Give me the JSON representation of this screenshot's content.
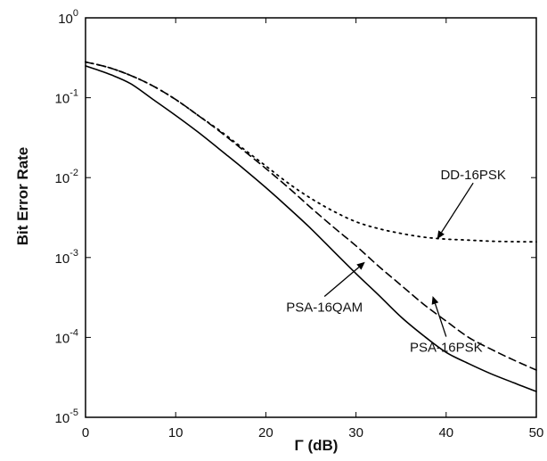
{
  "chart_data": {
    "type": "line",
    "title": "",
    "xlabel": "Γ (dB)",
    "ylabel": "Bit Error Rate",
    "xlim": [
      0,
      50
    ],
    "ylim": [
      1e-05,
      1
    ],
    "yscale": "log",
    "grid": false,
    "x_ticks": [
      "0",
      "10",
      "20",
      "30",
      "40",
      "50"
    ],
    "y_ticks": [
      {
        "base": "10",
        "exp": "0"
      },
      {
        "base": "10",
        "exp": "-1"
      },
      {
        "base": "10",
        "exp": "-2"
      },
      {
        "base": "10",
        "exp": "-3"
      },
      {
        "base": "10",
        "exp": "-4"
      },
      {
        "base": "10",
        "exp": "-5"
      }
    ],
    "series": [
      {
        "name": "PSA-16QAM",
        "line_style": "solid",
        "x": [
          0,
          2.5,
          5,
          7.5,
          10,
          12.5,
          15,
          17.5,
          20,
          22.5,
          25,
          27.5,
          30,
          32.5,
          35,
          37.5,
          40,
          42.5,
          45,
          47.5,
          50
        ],
        "y": [
          0.25,
          0.2,
          0.15,
          0.095,
          0.06,
          0.037,
          0.022,
          0.013,
          0.0075,
          0.0042,
          0.0023,
          0.0012,
          0.00063,
          0.00034,
          0.00018,
          0.000105,
          6.5e-05,
          4.7e-05,
          3.5e-05,
          2.7e-05,
          2.1e-05
        ]
      },
      {
        "name": "PSA-16PSK",
        "line_style": "dashed",
        "x": [
          0,
          2.5,
          5,
          7.5,
          10,
          12.5,
          15,
          17.5,
          20,
          22.5,
          25,
          27.5,
          30,
          32.5,
          35,
          37.5,
          40,
          42.5,
          45,
          47.5,
          50
        ],
        "y": [
          0.28,
          0.24,
          0.19,
          0.14,
          0.095,
          0.06,
          0.037,
          0.022,
          0.013,
          0.0075,
          0.0042,
          0.0024,
          0.0014,
          0.00078,
          0.00045,
          0.00026,
          0.00016,
          0.0001,
          7.1e-05,
          5.2e-05,
          3.9e-05
        ]
      },
      {
        "name": "DD-16PSK",
        "line_style": "dotted",
        "x": [
          0,
          2.5,
          5,
          7.5,
          10,
          12.5,
          15,
          17.5,
          20,
          22.5,
          25,
          27.5,
          30,
          32.5,
          35,
          37.5,
          40,
          42.5,
          45,
          47.5,
          50
        ],
        "y": [
          0.28,
          0.24,
          0.19,
          0.14,
          0.095,
          0.06,
          0.038,
          0.023,
          0.014,
          0.0085,
          0.0055,
          0.0038,
          0.0028,
          0.0023,
          0.002,
          0.0018,
          0.0017,
          0.00165,
          0.0016,
          0.00158,
          0.00157
        ]
      }
    ],
    "annotations": [
      {
        "text": "DD-16PSK",
        "series": "DD-16PSK",
        "text_pos": [
          43,
          0.0095
        ],
        "point": [
          39,
          0.0017
        ]
      },
      {
        "text": "PSA-16QAM",
        "series": "PSA-16QAM",
        "text_pos": [
          26.5,
          0.00021
        ],
        "point": [
          31,
          0.00088
        ]
      },
      {
        "text": "PSA-16PSK",
        "series": "PSA-16PSK",
        "text_pos": [
          40,
          6.6e-05
        ],
        "point": [
          38.5,
          0.00033
        ]
      }
    ]
  }
}
